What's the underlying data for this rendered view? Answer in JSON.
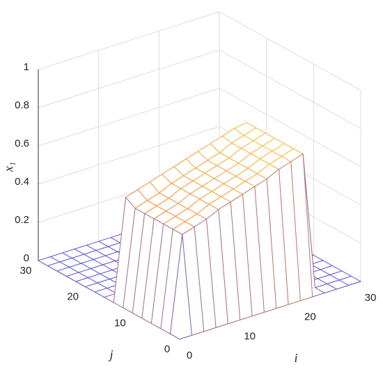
{
  "chart_data": {
    "type": "mesh",
    "xlabel": "i",
    "ylabel": "j",
    "zlabel": "x₁",
    "x": [
      0,
      2,
      4,
      6,
      8,
      10,
      12,
      14,
      16,
      18,
      20,
      22,
      24,
      26,
      28,
      30
    ],
    "y": [
      0,
      2,
      4,
      6,
      8,
      10,
      12,
      14,
      16,
      18,
      20,
      22,
      24,
      26,
      28,
      30
    ],
    "z": [
      [
        0,
        0,
        0,
        0,
        0,
        0,
        0,
        0,
        0,
        0,
        0,
        0,
        0,
        0,
        0,
        0
      ],
      [
        0,
        0.5,
        0.52,
        0.54,
        0.57,
        0.59,
        0.61,
        0.63,
        0.65,
        0.68,
        0.7,
        0.72,
        0,
        0,
        0,
        0
      ],
      [
        0,
        0.5,
        0.52,
        0.54,
        0.57,
        0.59,
        0.61,
        0.63,
        0.65,
        0.68,
        0.7,
        0.72,
        0,
        0,
        0,
        0
      ],
      [
        0,
        0.5,
        0.52,
        0.54,
        0.57,
        0.59,
        0.61,
        0.63,
        0.65,
        0.68,
        0.7,
        0.72,
        0,
        0,
        0,
        0
      ],
      [
        0,
        0.5,
        0.52,
        0.54,
        0.57,
        0.59,
        0.61,
        0.63,
        0.65,
        0.68,
        0.7,
        0.72,
        0,
        0,
        0,
        0
      ],
      [
        0,
        0.5,
        0.52,
        0.54,
        0.57,
        0.59,
        0.61,
        0.63,
        0.65,
        0.68,
        0.7,
        0.72,
        0,
        0,
        0,
        0
      ],
      [
        0,
        0.5,
        0.52,
        0.54,
        0.57,
        0.59,
        0.61,
        0.63,
        0.65,
        0.68,
        0.7,
        0.72,
        0,
        0,
        0,
        0
      ],
      [
        0,
        0.53,
        0.55,
        0.57,
        0.59,
        0.61,
        0.63,
        0.65,
        0.67,
        0.69,
        0.71,
        0.72,
        0,
        0,
        0,
        0
      ],
      [
        0,
        0,
        0,
        0,
        0,
        0,
        0,
        0,
        0,
        0,
        0,
        0,
        0,
        0,
        0,
        0
      ],
      [
        0,
        0,
        0,
        0,
        0,
        0,
        0,
        0,
        0,
        0,
        0,
        0,
        0,
        0,
        0,
        0
      ],
      [
        0,
        0,
        0,
        0,
        0,
        0,
        0,
        0,
        0,
        0,
        0,
        0,
        0,
        0,
        0,
        0
      ],
      [
        0,
        0,
        0,
        0,
        0,
        0,
        0,
        0,
        0,
        0,
        0,
        0,
        0,
        0,
        0,
        0
      ],
      [
        0,
        0,
        0,
        0,
        0,
        0,
        0,
        0,
        0,
        0,
        0,
        0,
        0,
        0,
        0,
        0
      ],
      [
        0,
        0,
        0,
        0,
        0,
        0,
        0,
        0,
        0,
        0,
        0,
        0,
        0,
        0,
        0,
        0
      ],
      [
        0,
        0,
        0,
        0,
        0,
        0,
        0,
        0,
        0,
        0,
        0,
        0,
        0,
        0,
        0,
        0
      ],
      [
        0,
        0,
        0,
        0,
        0,
        0,
        0,
        0,
        0,
        0,
        0,
        0,
        0,
        0,
        0,
        0
      ]
    ],
    "colormap": [
      "#5e5ad8",
      "#f28c3c",
      "#ffff30"
    ],
    "xlim": [
      0,
      30
    ],
    "xticks": [
      0,
      10,
      20,
      30
    ],
    "ylim": [
      0,
      30
    ],
    "yticks": [
      0,
      10,
      20,
      30
    ],
    "zlim": [
      0,
      1
    ],
    "zticks": [
      0,
      0.2,
      0.4,
      0.6,
      0.8,
      1
    ],
    "grid": true
  }
}
